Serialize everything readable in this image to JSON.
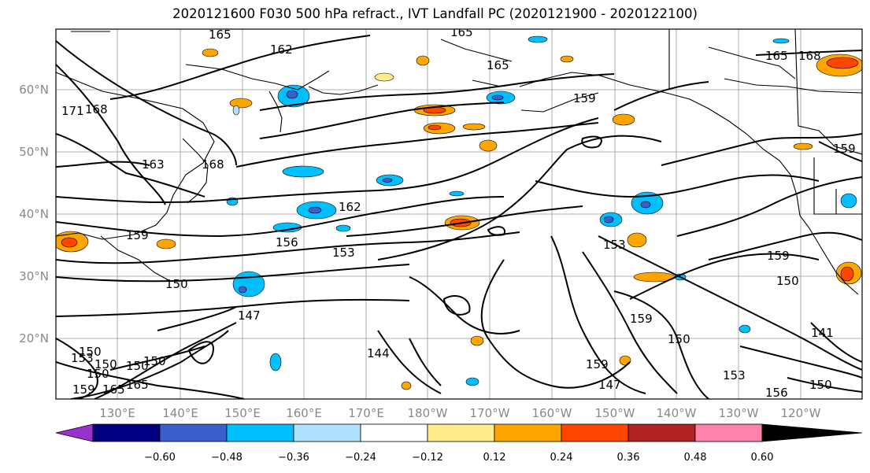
{
  "title": "2020121600 F030 500 hPa refract., IVT Landfall PC (2020121900 - 2020122100)",
  "lat_labels": [
    "60°N",
    "50°N",
    "40°N",
    "30°N",
    "20°N"
  ],
  "lon_labels": [
    "130°E",
    "140°E",
    "150°E",
    "160°E",
    "170°E",
    "180°W",
    "170°W",
    "160°W",
    "150°W",
    "140°W",
    "130°W",
    "120°W"
  ],
  "contour_labels": [
    "165",
    "162",
    "165",
    "165",
    "159",
    "165",
    "168",
    "168",
    "171",
    "163",
    "168",
    "159",
    "162",
    "159",
    "156",
    "153",
    "153",
    "150",
    "159",
    "150",
    "147",
    "150",
    "144",
    "159",
    "150",
    "153",
    "150",
    "156",
    "150",
    "141",
    "147",
    "153",
    "159",
    "150",
    "150",
    "150",
    "165",
    "165",
    "159"
  ],
  "colorbar": {
    "ticks": [
      "−0.60",
      "−0.48",
      "−0.36",
      "−0.24",
      "−0.12",
      "0.12",
      "0.24",
      "0.36",
      "0.48",
      "0.60"
    ],
    "colors": [
      "#9932CC",
      "#000080",
      "#3A5FCD",
      "#00BFFF",
      "#B0E2FF",
      "#FFFFFF",
      "#FFEC8B",
      "#FFA500",
      "#FF4500",
      "#B22222",
      "#FF82AB"
    ]
  }
}
